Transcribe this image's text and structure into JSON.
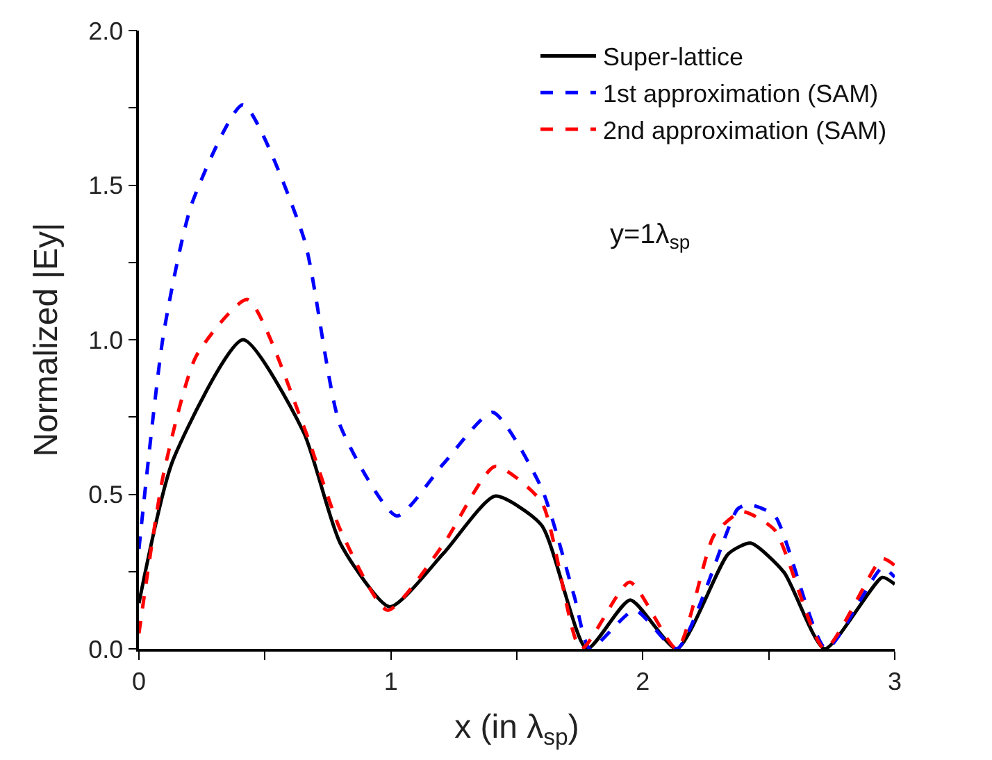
{
  "chart_data": {
    "type": "line",
    "xlabel": "x (in λ$_{sp}$)",
    "ylabel": "Normalized |Ey|",
    "xlim": [
      0,
      3
    ],
    "ylim": [
      0,
      2
    ],
    "xticks": [
      0,
      {
        "value": 0.5,
        "label": null
      },
      1,
      {
        "value": 1.5,
        "label": null
      },
      2,
      {
        "value": 2.5,
        "label": null
      },
      3
    ],
    "yticks": [
      "0.0",
      {
        "value": 0.25,
        "label": null
      },
      {
        "value": 0.5,
        "label": "0.5"
      },
      {
        "value": 0.75,
        "label": null
      },
      {
        "value": 1.0,
        "label": "1.0"
      },
      {
        "value": 1.25,
        "label": null
      },
      {
        "value": 1.5,
        "label": "1.5"
      },
      {
        "value": 1.75,
        "label": null
      },
      {
        "value": 2.0,
        "label": "2.0"
      }
    ],
    "legend": "top right",
    "marker": "none",
    "annotations": [
      "y=1λ$_{sp}$"
    ],
    "series": [
      {
        "name": "Super-lattice",
        "color": "#000000",
        "line_style": "solid",
        "x": [
          0,
          0.135,
          0.413,
          0.654,
          0.8,
          0.996,
          1.21,
          1.413,
          1.598,
          1.778,
          1.95,
          2.135,
          2.339,
          2.428,
          2.561,
          2.722,
          2.95,
          3.0
        ],
        "values": [
          0.148,
          0.61,
          1.0,
          0.7,
          0.34,
          0.136,
          0.31,
          0.494,
          0.4,
          0.0,
          0.158,
          0.0,
          0.307,
          0.342,
          0.247,
          0.0,
          0.231,
          0.209
        ]
      },
      {
        "name": "1st approximation (SAM)",
        "color": "#0000ff",
        "line_style": "dashed",
        "x": [
          0,
          0.098,
          0.21,
          0.413,
          0.654,
          0.8,
          1.024,
          1.21,
          1.404,
          1.598,
          1.728,
          1.79,
          1.968,
          2.135,
          2.376,
          2.42,
          2.524,
          2.728,
          2.95,
          3.0
        ],
        "values": [
          0.323,
          1.02,
          1.44,
          1.76,
          1.33,
          0.72,
          0.43,
          0.6,
          0.765,
          0.52,
          0.17,
          0.0,
          0.125,
          0.0,
          0.452,
          0.467,
          0.43,
          0.0,
          0.262,
          0.232
        ]
      },
      {
        "name": "2nd approximation (SAM)",
        "color": "#ff0000",
        "line_style": "dashed",
        "x": [
          0,
          0.098,
          0.228,
          0.431,
          0.654,
          0.8,
          0.987,
          1.21,
          1.413,
          1.598,
          1.755,
          1.948,
          2.135,
          2.283,
          2.394,
          2.524,
          2.722,
          2.95,
          3.0
        ],
        "values": [
          0.05,
          0.567,
          0.948,
          1.13,
          0.72,
          0.384,
          0.125,
          0.34,
          0.59,
          0.475,
          0.0,
          0.216,
          0.0,
          0.368,
          0.444,
          0.384,
          0.0,
          0.292,
          0.27
        ]
      }
    ]
  }
}
